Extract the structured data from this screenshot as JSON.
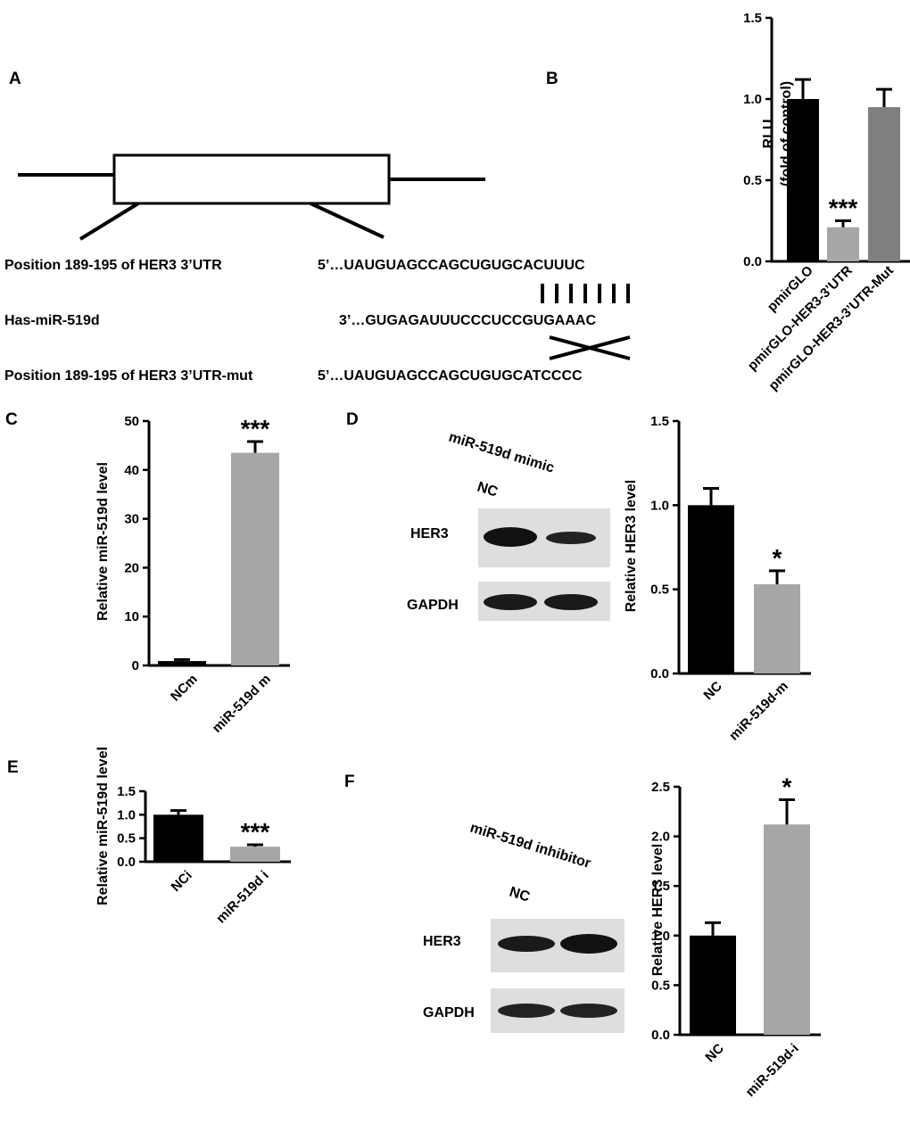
{
  "panel_labels": [
    "A",
    "B",
    "C",
    "D",
    "E",
    "F"
  ],
  "diagram": {
    "row1_label": "Position 189-195  of HER3  3’UTR",
    "row1_seq": "5’…UAUGUAGCCAGCUGUGCACUUUC",
    "row2_label": "Has-miR-519d",
    "row2_seq": "3’…GUGAGAUUUCCCUCCGUGAAAC",
    "row3_label": "Position 189-195  of HER3  3’UTR-mut",
    "row3_seq": "5’…UAUGUAGCCAGCUGUGCATCCCC"
  },
  "blot_d": {
    "header": "miR-519d mimic",
    "lane1": "NC",
    "row1": "HER3",
    "row2": "GAPDH"
  },
  "blot_f": {
    "header": "miR-519d inhibitor",
    "lane1": "NC",
    "row1": "HER3",
    "row2": "GAPDH"
  },
  "chart_data": [
    {
      "id": "B",
      "type": "bar",
      "categories": [
        "pmirGLO",
        "pmirGLO-HER3-3’UTR",
        "pmirGLO-HER3-3’UTR-Mut"
      ],
      "values": [
        1.0,
        0.21,
        0.95
      ],
      "errors": [
        0.12,
        0.04,
        0.11
      ],
      "colors": [
        "#000000",
        "#a6a6a6",
        "#7f7f7f"
      ],
      "significance": [
        "",
        "***",
        ""
      ],
      "ylabel": [
        "RLU",
        "(fold of control)"
      ],
      "ylim": [
        0,
        1.5
      ],
      "yticks": [
        0.0,
        0.5,
        1.0,
        1.5
      ],
      "tick_labels": [
        "0.0",
        "0.5",
        "1.0",
        "1.5"
      ]
    },
    {
      "id": "C",
      "type": "bar",
      "categories": [
        "NCm",
        "miR-519d m"
      ],
      "values": [
        0.9,
        43.5
      ],
      "errors": [
        0.3,
        2.3
      ],
      "colors": [
        "#000000",
        "#a6a6a6"
      ],
      "significance": [
        "",
        "***"
      ],
      "ylabel": [
        "Relative miR-519d level"
      ],
      "ylim": [
        0,
        50
      ],
      "yticks": [
        0,
        10,
        20,
        30,
        40,
        50
      ],
      "tick_labels": [
        "0",
        "10",
        "20",
        "30",
        "40",
        "50"
      ]
    },
    {
      "id": "D",
      "type": "bar",
      "categories": [
        "NC",
        "miR-519d-m"
      ],
      "values": [
        1.0,
        0.53
      ],
      "errors": [
        0.1,
        0.08
      ],
      "colors": [
        "#000000",
        "#a6a6a6"
      ],
      "significance": [
        "",
        "*"
      ],
      "ylabel": [
        "Relative HER3 level"
      ],
      "ylim": [
        0,
        1.5
      ],
      "yticks": [
        0.0,
        0.5,
        1.0,
        1.5
      ],
      "tick_labels": [
        "0.0",
        "0.5",
        "1.0",
        "1.5"
      ]
    },
    {
      "id": "E",
      "type": "bar",
      "categories": [
        "NCi",
        "miR-519d i"
      ],
      "values": [
        1.0,
        0.32
      ],
      "errors": [
        0.09,
        0.04
      ],
      "colors": [
        "#000000",
        "#a6a6a6"
      ],
      "significance": [
        "",
        "***"
      ],
      "ylabel": [
        "Relative miR-519d level"
      ],
      "ylim": [
        0,
        1.5
      ],
      "yticks": [
        0.0,
        0.5,
        1.0,
        1.5
      ],
      "tick_labels": [
        "0.0",
        "0.5",
        "1.0",
        "1.5"
      ]
    },
    {
      "id": "F",
      "type": "bar",
      "categories": [
        "NC",
        "miR-519d-i"
      ],
      "values": [
        1.0,
        2.12
      ],
      "errors": [
        0.13,
        0.25
      ],
      "colors": [
        "#000000",
        "#a6a6a6"
      ],
      "significance": [
        "",
        "*"
      ],
      "ylabel": [
        "Relative HER3 level"
      ],
      "ylim": [
        0,
        2.5
      ],
      "yticks": [
        0.0,
        0.5,
        1.0,
        1.5,
        2.0,
        2.5
      ],
      "tick_labels": [
        "0.0",
        "0.5",
        "1.0",
        "1.5",
        "2.0",
        "2.5"
      ]
    }
  ]
}
